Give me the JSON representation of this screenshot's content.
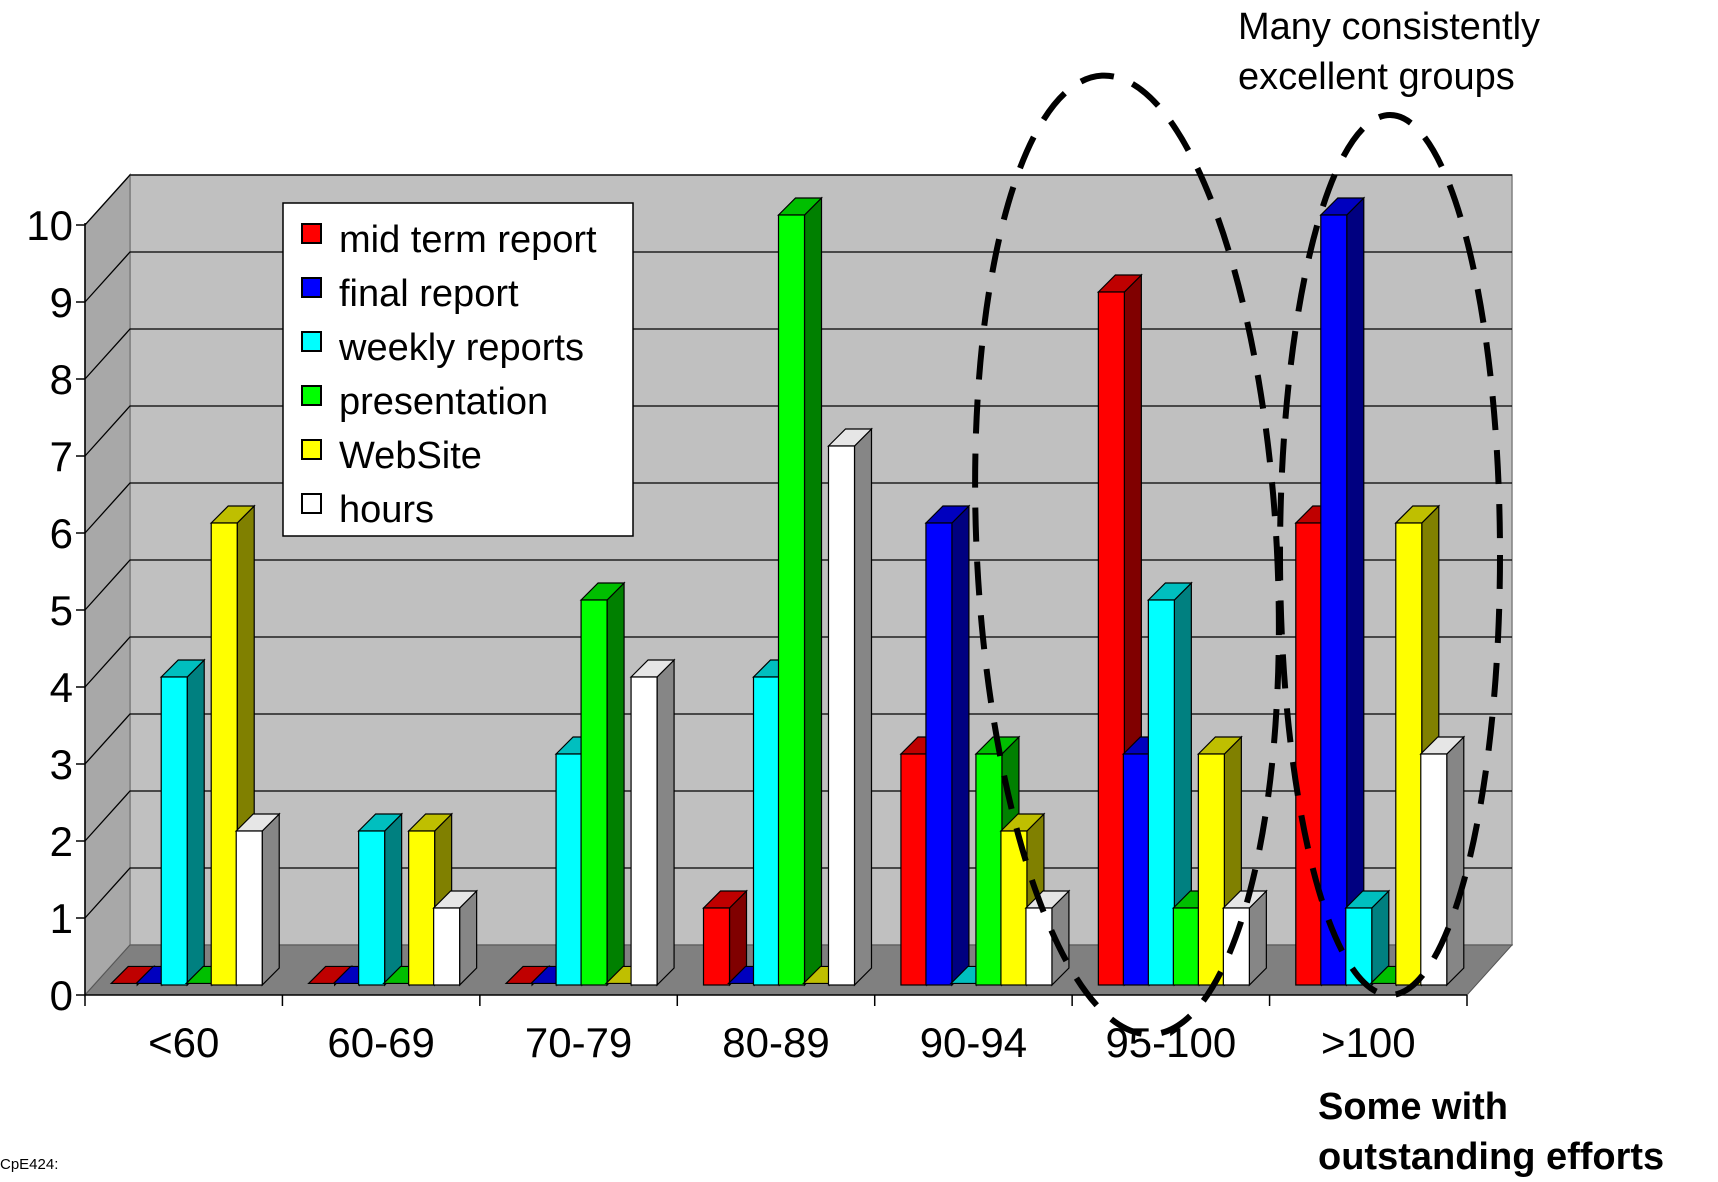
{
  "chart_data": {
    "type": "bar",
    "categories": [
      "<60",
      "60-69",
      "70-79",
      "80-89",
      "90-94",
      "95-100",
      ">100"
    ],
    "series": [
      {
        "name": "mid term report",
        "values": [
          0,
          0,
          0,
          1,
          3,
          9,
          6
        ]
      },
      {
        "name": "final report",
        "values": [
          0,
          0,
          0,
          0,
          6,
          3,
          10
        ]
      },
      {
        "name": "weekly reports",
        "values": [
          4,
          2,
          3,
          4,
          0,
          5,
          1
        ]
      },
      {
        "name": "presentation",
        "values": [
          0,
          0,
          5,
          10,
          3,
          1,
          0
        ]
      },
      {
        "name": "WebSite",
        "values": [
          6,
          2,
          0,
          0,
          2,
          3,
          6
        ]
      },
      {
        "name": "hours",
        "values": [
          2,
          1,
          4,
          7,
          1,
          1,
          3
        ]
      }
    ],
    "colors": [
      "#ff0000",
      "#0000ff",
      "#00ffff",
      "#00ff00",
      "#ffff00",
      "#ffffff"
    ],
    "y_ticks": [
      "0",
      "1",
      "2",
      "3",
      "4",
      "5",
      "6",
      "7",
      "8",
      "9",
      "10"
    ],
    "ylim": [
      0,
      10
    ],
    "grid": true,
    "style": "3d-clustered-column",
    "legend_position": "top-left-inside",
    "wall_color": "#c0c0c0",
    "floor_color": "#808080"
  },
  "annotations": {
    "top_note_line1": "Many consistently",
    "top_note_line2": "excellent groups",
    "bottom_note_line1": "Some with",
    "bottom_note_line2": "outstanding efforts"
  },
  "footer": "CpE424:"
}
